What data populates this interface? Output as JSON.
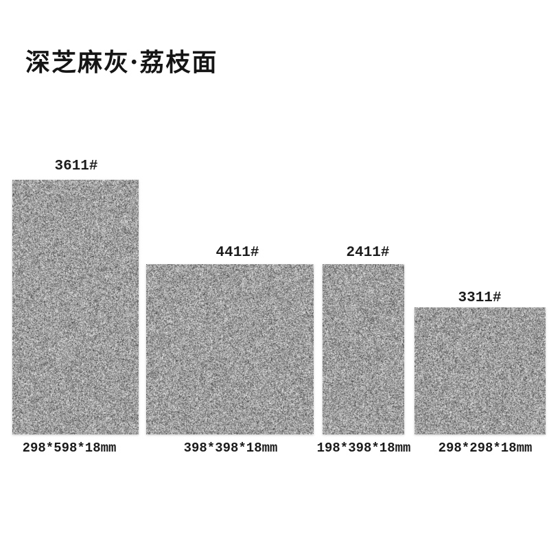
{
  "page": {
    "background_color": "#ffffff"
  },
  "header": {
    "title": "深芝麻灰·荔枝面",
    "title_color": "#151515"
  },
  "texture": {
    "name": "dark-sesame-grey-litchi-granite",
    "base_color": "#a0a0a0",
    "speck_dark": "#4e4e4e",
    "speck_light": "#e6e6e6"
  },
  "products": [
    {
      "model": "3611#",
      "size": "298*598*18mm"
    },
    {
      "model": "4411#",
      "size": "398*398*18mm"
    },
    {
      "model": "2411#",
      "size": "198*398*18mm"
    },
    {
      "model": "3311#",
      "size": "298*298*18mm"
    }
  ]
}
